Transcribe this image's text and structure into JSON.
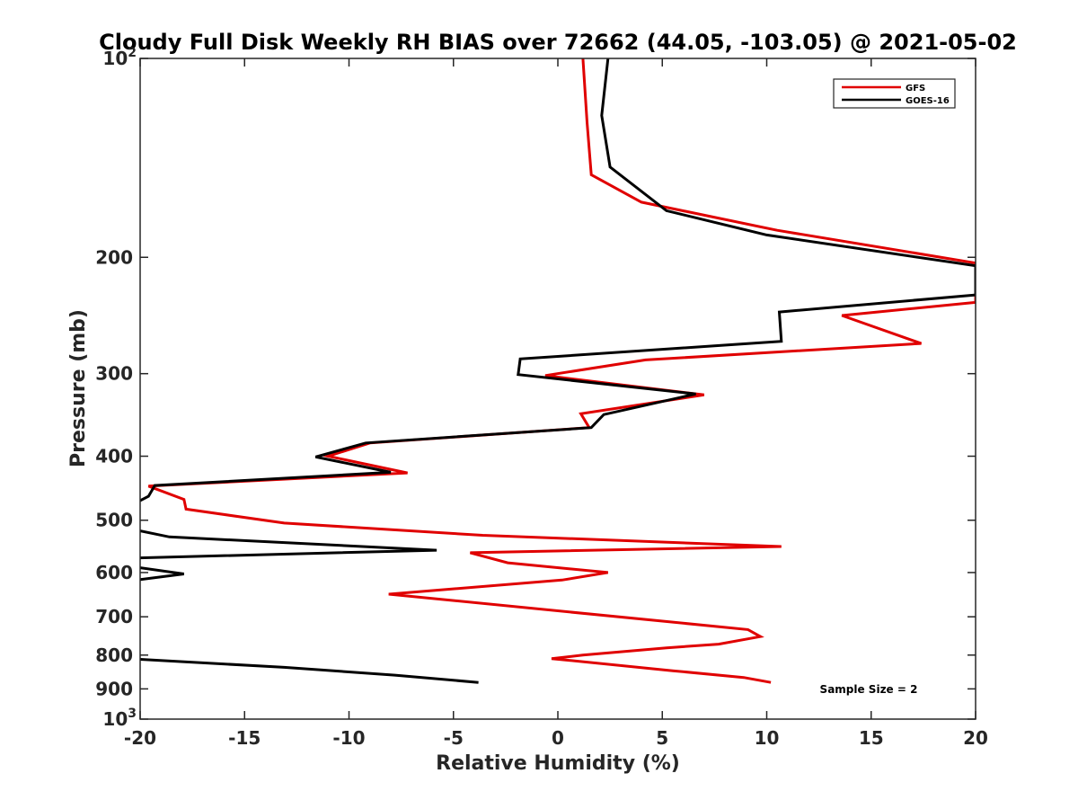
{
  "chart_data": {
    "type": "line",
    "title": "Cloudy Full Disk Weekly RH BIAS over 72662 (44.05, -103.05) @ 2021-05-02",
    "xlabel": "Relative Humidity (%)",
    "ylabel": "Pressure (mb)",
    "xlim": [
      -20,
      20
    ],
    "ylim": [
      100,
      1000
    ],
    "y_scale": "log",
    "y_reversed": true,
    "x_ticks": [
      -20,
      -15,
      -10,
      -5,
      0,
      5,
      10,
      15,
      20
    ],
    "x_tick_labels": [
      "-20",
      "-15",
      "-10",
      "-5",
      "0",
      "5",
      "10",
      "15",
      "20"
    ],
    "y_ticks": [
      100,
      200,
      300,
      400,
      500,
      600,
      700,
      800,
      900,
      1000
    ],
    "y_tick_labels": [
      {
        "base": "10",
        "exp": "2"
      },
      {
        "base": "200",
        "exp": ""
      },
      {
        "base": "300",
        "exp": ""
      },
      {
        "base": "400",
        "exp": ""
      },
      {
        "base": "500",
        "exp": ""
      },
      {
        "base": "600",
        "exp": ""
      },
      {
        "base": "700",
        "exp": ""
      },
      {
        "base": "800",
        "exp": ""
      },
      {
        "base": "900",
        "exp": ""
      },
      {
        "base": "10",
        "exp": "3"
      }
    ],
    "grid": false,
    "legend_position": "top-right",
    "annotation": "Sample Size = 2",
    "series": [
      {
        "name": "GFS",
        "color": "#e00000",
        "points": [
          [
            1.2,
            100
          ],
          [
            1.4,
            125
          ],
          [
            1.6,
            150
          ],
          [
            4.0,
            165
          ],
          [
            10.5,
            182
          ],
          [
            20.0,
            204
          ],
          [
            20.0,
            234
          ],
          [
            13.6,
            245
          ],
          [
            17.4,
            270
          ],
          [
            4.2,
            286
          ],
          [
            -0.6,
            302
          ],
          [
            7.0,
            323
          ],
          [
            1.1,
            345
          ],
          [
            1.5,
            362
          ],
          [
            -9.0,
            382
          ],
          [
            -11.0,
            400
          ],
          [
            -7.2,
            424
          ],
          [
            -19.6,
            444
          ],
          [
            -17.9,
            465
          ],
          [
            -17.8,
            481
          ],
          [
            -13.1,
            505
          ],
          [
            -3.6,
            527
          ],
          [
            10.7,
            548
          ],
          [
            -4.2,
            560
          ],
          [
            -2.4,
            580
          ],
          [
            2.4,
            600
          ],
          [
            0.2,
            616
          ],
          [
            -8.1,
            647
          ],
          [
            9.1,
            732
          ],
          [
            9.7,
            750
          ],
          [
            7.7,
            770
          ],
          [
            5.2,
            780
          ],
          [
            1.2,
            800
          ],
          [
            -0.3,
            810
          ],
          [
            5.5,
            845
          ],
          [
            8.9,
            865
          ],
          [
            10.2,
            880
          ]
        ]
      },
      {
        "name": "GOES-16",
        "color": "#000000",
        "points": [
          [
            2.4,
            100
          ],
          [
            2.1,
            122
          ],
          [
            2.5,
            146
          ],
          [
            5.2,
            170
          ],
          [
            10.0,
            185
          ],
          [
            20.0,
            206
          ],
          [
            20.0,
            228
          ],
          [
            10.6,
            242
          ],
          [
            10.7,
            268
          ],
          [
            -1.8,
            285
          ],
          [
            -1.9,
            301
          ],
          [
            6.6,
            322
          ],
          [
            2.2,
            346
          ],
          [
            1.6,
            362
          ],
          [
            -9.2,
            382
          ],
          [
            -11.6,
            401
          ],
          [
            -8.0,
            423
          ],
          [
            -19.3,
            443
          ],
          [
            -19.6,
            460
          ],
          [
            -20.0,
            467
          ]
        ]
      },
      {
        "name": "GOES-16",
        "color": "#000000",
        "points": [
          [
            -20.0,
            519
          ],
          [
            -18.6,
            530
          ],
          [
            -5.8,
            555
          ],
          [
            -20.0,
            570
          ]
        ]
      },
      {
        "name": "GOES-16",
        "color": "#000000",
        "points": [
          [
            -20.0,
            590
          ],
          [
            -17.9,
            603
          ],
          [
            -20.0,
            615
          ]
        ]
      },
      {
        "name": "GOES-16",
        "color": "#000000",
        "points": [
          [
            -20.0,
            812
          ],
          [
            -13.1,
            835
          ],
          [
            -7.8,
            858
          ],
          [
            -3.8,
            880
          ]
        ]
      }
    ],
    "legend": [
      {
        "name": "GFS",
        "color": "#e00000"
      },
      {
        "name": "GOES-16",
        "color": "#000000"
      }
    ]
  }
}
